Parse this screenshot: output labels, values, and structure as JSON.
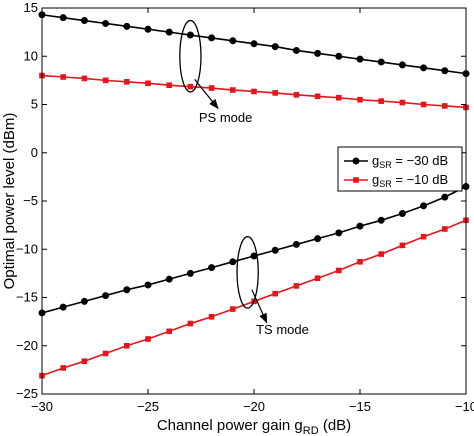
{
  "chart_data": {
    "type": "line",
    "xlabel": "Channel power gain g",
    "xlabel_sub": "RD",
    "xlabel_unit": " (dB)",
    "ylabel": "Optimal power level (dBm)",
    "xlim": [
      -30,
      -10
    ],
    "ylim": [
      -25,
      15
    ],
    "xticks": [
      -30,
      -25,
      -20,
      -15,
      -10
    ],
    "xtick_labels": [
      "−30",
      "−25",
      "−20",
      "−15",
      "−10"
    ],
    "yticks": [
      -25,
      -20,
      -15,
      -10,
      -5,
      0,
      5,
      10,
      15
    ],
    "ytick_labels": [
      "−25",
      "−20",
      "−15",
      "−10",
      "−5",
      "0",
      "5",
      "10",
      "15"
    ],
    "grid": false,
    "legend_position": "right-middle",
    "series": [
      {
        "name": "g_SR = −30 dB",
        "legend_main": "g",
        "legend_sub": "SR",
        "legend_rest": " = −30 dB",
        "color": "#000000",
        "marker": "circle",
        "segments": [
          {
            "x": [
              -30,
              -29,
              -28,
              -27,
              -26,
              -25,
              -24,
              -23,
              -22,
              -21,
              -20,
              -19,
              -18,
              -17,
              -16,
              -15,
              -14,
              -13,
              -12,
              -11,
              -10
            ],
            "y": [
              14.3,
              14.0,
              13.7,
              13.4,
              13.1,
              12.8,
              12.5,
              12.2,
              11.9,
              11.6,
              11.3,
              11.0,
              10.6,
              10.3,
              10.0,
              9.7,
              9.4,
              9.1,
              8.8,
              8.5,
              8.2
            ]
          },
          {
            "x": [
              -30,
              -29,
              -28,
              -27,
              -26,
              -25,
              -24,
              -23,
              -22,
              -21,
              -20,
              -19,
              -18,
              -17,
              -16,
              -15,
              -14,
              -13,
              -12,
              -11,
              -10
            ],
            "y": [
              -16.6,
              -16.0,
              -15.4,
              -14.8,
              -14.2,
              -13.7,
              -13.1,
              -12.5,
              -11.9,
              -11.3,
              -10.7,
              -10.1,
              -9.5,
              -8.9,
              -8.3,
              -7.6,
              -7.0,
              -6.3,
              -5.5,
              -4.6,
              -3.5
            ]
          }
        ]
      },
      {
        "name": "g_SR = −10 dB",
        "legend_main": "g",
        "legend_sub": "SR",
        "legend_rest": " = −10 dB",
        "color": "#e8141b",
        "marker": "square",
        "segments": [
          {
            "x": [
              -30,
              -29,
              -28,
              -27,
              -26,
              -25,
              -24,
              -23,
              -22,
              -21,
              -20,
              -19,
              -18,
              -17,
              -16,
              -15,
              -14,
              -13,
              -12,
              -11,
              -10
            ],
            "y": [
              8.0,
              7.85,
              7.7,
              7.5,
              7.35,
              7.2,
              7.0,
              6.85,
              6.7,
              6.5,
              6.35,
              6.2,
              6.0,
              5.85,
              5.7,
              5.5,
              5.35,
              5.2,
              5.0,
              4.85,
              4.7
            ]
          },
          {
            "x": [
              -30,
              -29,
              -28,
              -27,
              -26,
              -25,
              -24,
              -23,
              -22,
              -21,
              -20,
              -19,
              -18,
              -17,
              -16,
              -15,
              -14,
              -13,
              -12,
              -11,
              -10
            ],
            "y": [
              -23.1,
              -22.3,
              -21.6,
              -20.8,
              -20.0,
              -19.3,
              -18.5,
              -17.7,
              -17.0,
              -16.2,
              -15.4,
              -14.6,
              -13.8,
              -13.0,
              -12.2,
              -11.3,
              -10.5,
              -9.6,
              -8.7,
              -7.9,
              -7.0
            ]
          }
        ]
      }
    ],
    "annotations": [
      {
        "text": "PS mode",
        "ellipse_center": [
          -23,
          10
        ],
        "ellipse_rx": 0.5,
        "ellipse_ry": 3.7,
        "arrow_from": [
          -22.8,
          7.6
        ],
        "arrow_to": [
          -21.7,
          4.6
        ],
        "text_at": [
          -22.6,
          3.2
        ]
      },
      {
        "text": "TS mode",
        "ellipse_center": [
          -20.3,
          -12.4
        ],
        "ellipse_rx": 0.5,
        "ellipse_ry": 3.7,
        "arrow_from": [
          -20.1,
          -14.2
        ],
        "arrow_to": [
          -19.4,
          -17.6
        ],
        "text_at": [
          -19.9,
          -18.8
        ]
      }
    ]
  }
}
